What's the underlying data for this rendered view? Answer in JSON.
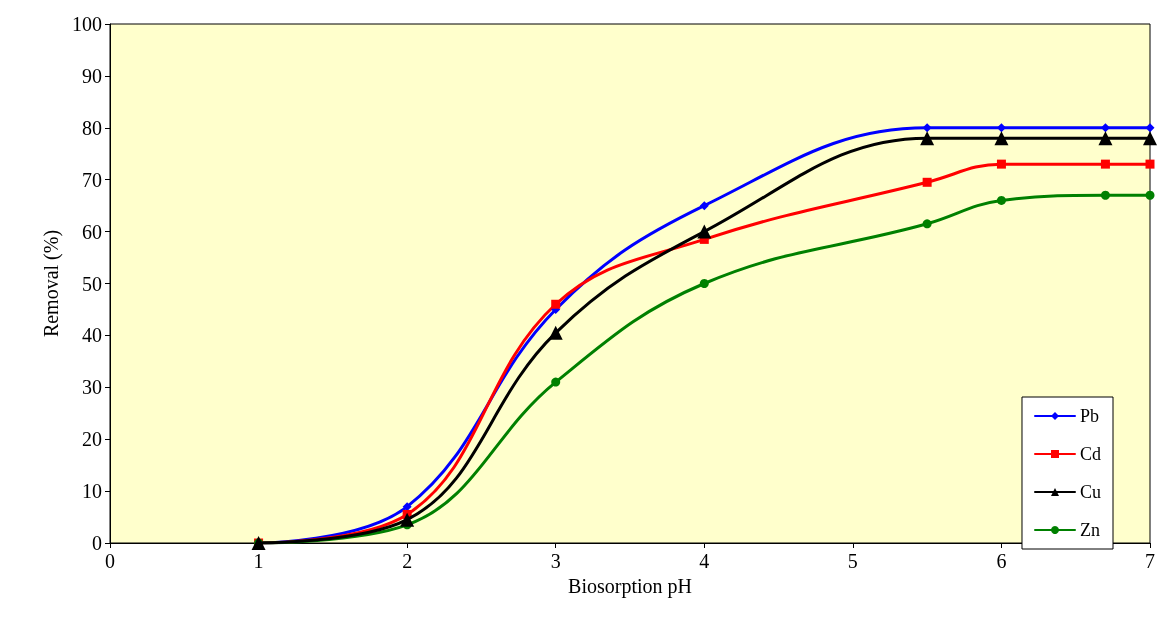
{
  "chart_data": {
    "type": "line",
    "xlabel": "Biosorption pH",
    "ylabel": "Removal (%)",
    "xlim": [
      0,
      7
    ],
    "xticks": [
      0,
      1,
      2,
      3,
      4,
      5,
      6,
      7
    ],
    "ylim": [
      0,
      100
    ],
    "yticks": [
      0,
      10,
      20,
      30,
      40,
      50,
      60,
      70,
      80,
      90,
      100
    ],
    "grid": false,
    "legend": "bottom right",
    "line_style": "solid",
    "series": [
      {
        "name": "Pb",
        "color": "#0000ff",
        "marker": "diamond",
        "x": [
          1,
          2,
          3,
          4,
          5.5,
          6,
          6.7,
          7
        ],
        "values": [
          0,
          7,
          45,
          65,
          80,
          80,
          80,
          80
        ]
      },
      {
        "name": "Cd",
        "color": "#ff0000",
        "marker": "square",
        "x": [
          1,
          2,
          3,
          4,
          5.5,
          6,
          6.7,
          7
        ],
        "values": [
          0,
          5.5,
          46,
          58.5,
          69.5,
          73,
          73,
          73
        ]
      },
      {
        "name": "Cu",
        "color": "#000000",
        "marker": "triangle",
        "x": [
          1,
          2,
          3,
          4,
          5.5,
          6,
          6.7,
          7
        ],
        "values": [
          0,
          4.5,
          40.5,
          60,
          78,
          78,
          78,
          78
        ]
      },
      {
        "name": "Zn",
        "color": "#008000",
        "marker": "circle",
        "x": [
          1,
          2,
          3,
          4,
          5.5,
          6,
          6.7,
          7
        ],
        "values": [
          0,
          3.5,
          31,
          50,
          61.5,
          66,
          67,
          67
        ]
      }
    ]
  }
}
